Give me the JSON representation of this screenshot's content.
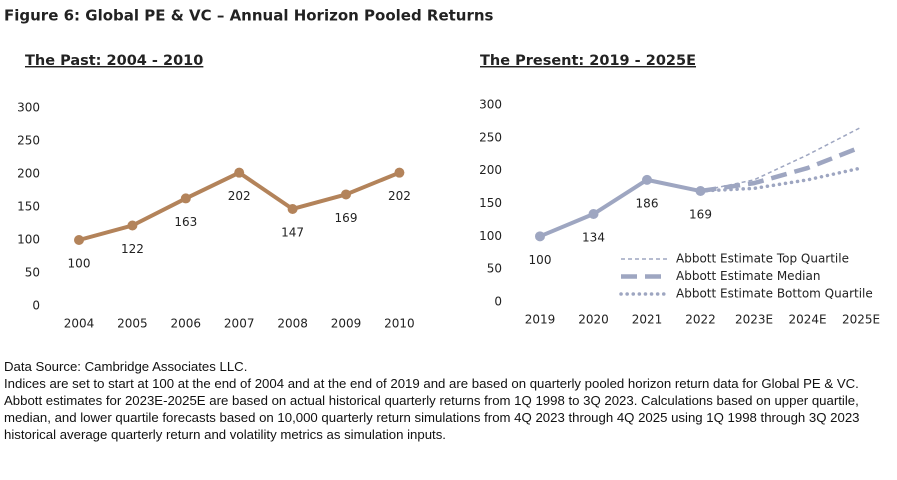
{
  "figure_title": "Figure 6: Global PE & VC – Annual Horizon Pooled Returns",
  "source": "Data Source: Cambridge Associates LLC.",
  "note": "Indices are set to start at 100 at the end of 2004 and at the end of 2019 and are based on quarterly pooled horizon return data for Global PE & VC. Abbott estimates for 2023E-2025E are based on actual historical quarterly returns from 1Q 1998 to 3Q 2023. Calculations based on upper quartile, median, and lower quartile forecasts based on 10,000 quarterly return simulations from 4Q 2023 through 4Q 2025 using 1Q 1998 through 3Q 2023 historical average quarterly return and volatility metrics as simulation inputs.",
  "chart_data": [
    {
      "type": "line",
      "title": "The Past: 2004 - 2010",
      "categories": [
        "2004",
        "2005",
        "2006",
        "2007",
        "2008",
        "2009",
        "2010"
      ],
      "series": [
        {
          "color": "#b3835a",
          "style": "solid",
          "markers": true,
          "labels": true,
          "values": [
            100,
            122,
            163,
            202,
            147,
            169,
            202
          ]
        }
      ],
      "ylim": [
        0,
        300
      ],
      "yticks": [
        0,
        50,
        100,
        150,
        200,
        250,
        300
      ],
      "grid": false
    },
    {
      "type": "line",
      "title": "The Present: 2019 - 2025E",
      "categories": [
        "2019",
        "2020",
        "2021",
        "2022",
        "2023E",
        "2024E",
        "2025E"
      ],
      "series": [
        {
          "color": "#9ea6c1",
          "style": "solid",
          "markers": true,
          "labels": true,
          "values": [
            100,
            134,
            186,
            169,
            null,
            null,
            null
          ]
        },
        {
          "name": "Abbott Estimate Top Quartile",
          "color": "#9ea6c1",
          "style": "dashed",
          "values": [
            null,
            null,
            null,
            169,
            186,
            224,
            266
          ]
        },
        {
          "name": "Abbott Estimate Median",
          "color": "#9ea6c1",
          "style": "long-dashed",
          "values": [
            null,
            null,
            null,
            169,
            181,
            204,
            236
          ]
        },
        {
          "name": "Abbott Estimate Bottom Quartile",
          "color": "#9ea6c1",
          "style": "dotted",
          "values": [
            null,
            null,
            null,
            169,
            173,
            186,
            204
          ]
        }
      ],
      "ylim": [
        0,
        300
      ],
      "yticks": [
        0,
        50,
        100,
        150,
        200,
        250,
        300
      ],
      "grid": false,
      "legend": "lower right"
    }
  ]
}
